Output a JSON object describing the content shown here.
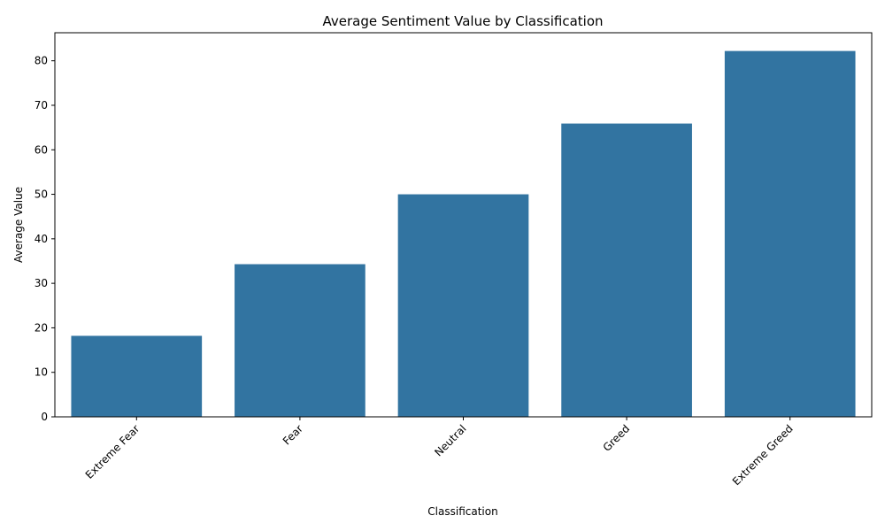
{
  "chart_data": {
    "type": "bar",
    "title": "Average Sentiment Value by Classification",
    "xlabel": "Classification",
    "ylabel": "Average Value",
    "categories": [
      "Extreme Fear",
      "Fear",
      "Neutral",
      "Greed",
      "Extreme Greed"
    ],
    "values": [
      18.2,
      34.3,
      50.0,
      65.9,
      82.2
    ],
    "ylim": [
      0,
      86.3
    ],
    "yticks": [
      0,
      10,
      20,
      30,
      40,
      50,
      60,
      70,
      80
    ],
    "bar_color": "#3274a1",
    "grid": false,
    "legend": "none"
  }
}
